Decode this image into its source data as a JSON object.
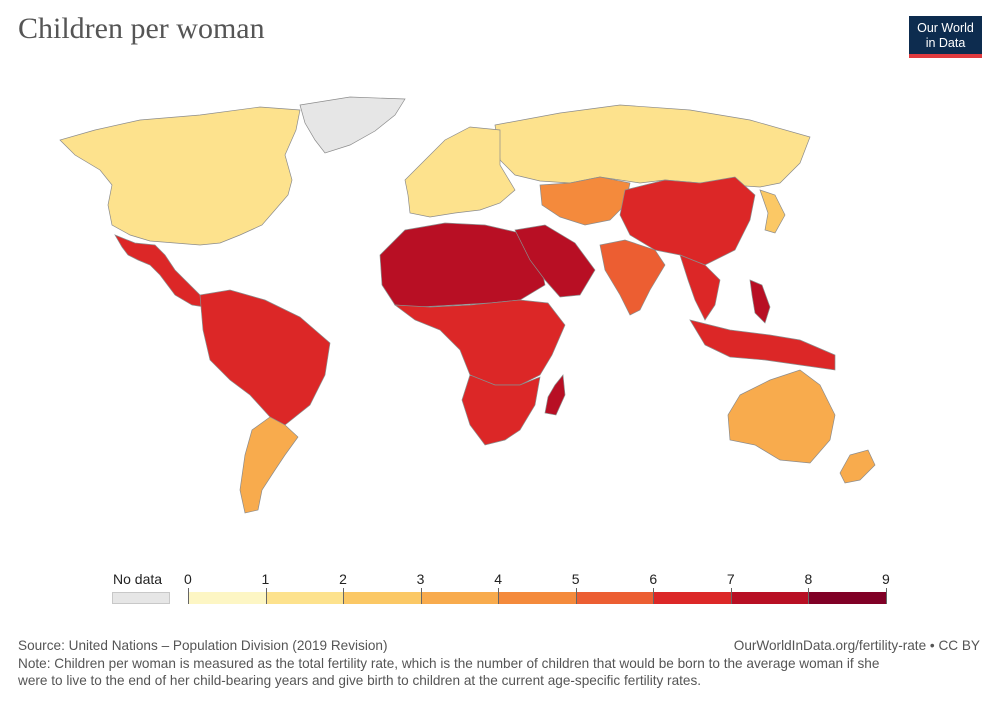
{
  "header": {
    "title": "Children per woman",
    "logo": {
      "line1": "Our World",
      "line2": "in Data"
    }
  },
  "colors": {
    "scale": [
      "#fdf6c4",
      "#fde28d",
      "#fbc865",
      "#f8ab4d",
      "#f48a3c",
      "#ec5e32",
      "#dc2727",
      "#b80f24",
      "#800026"
    ],
    "no_data": "#e6e6e6",
    "border": "#8c8c8c"
  },
  "legend": {
    "no_data_label": "No data",
    "ticks": [
      "0",
      "1",
      "2",
      "3",
      "4",
      "5",
      "6",
      "7",
      "8",
      "9"
    ]
  },
  "regions": [
    {
      "name": "Greenland",
      "class": "no_data"
    },
    {
      "name": "North America",
      "class": 1
    },
    {
      "name": "Russia",
      "class": 1
    },
    {
      "name": "Europe",
      "class": 1
    },
    {
      "name": "Mexico and Central America",
      "class": 6
    },
    {
      "name": "South America North",
      "class": 6
    },
    {
      "name": "Southern Cone",
      "class": 3
    },
    {
      "name": "North Africa",
      "class": 7
    },
    {
      "name": "Arabian Peninsula",
      "class": 7
    },
    {
      "name": "Central Africa",
      "class": 6
    },
    {
      "name": "Southern Africa",
      "class": 6
    },
    {
      "name": "Madagascar",
      "class": 7
    },
    {
      "name": "Central Asia",
      "class": 4
    },
    {
      "name": "China",
      "class": 6
    },
    {
      "name": "India",
      "class": 5
    },
    {
      "name": "Southeast Asia",
      "class": 6
    },
    {
      "name": "Japan",
      "class": 2
    },
    {
      "name": "Indonesia",
      "class": 6
    },
    {
      "name": "Philippines",
      "class": 7
    },
    {
      "name": "Australia",
      "class": 3
    },
    {
      "name": "New Zealand",
      "class": 3
    }
  ],
  "footer": {
    "source": "Source: United Nations – Population Division (2019 Revision)",
    "url": "OurWorldInData.org/fertility-rate • CC BY",
    "note_line1": "Note: Children per woman is measured as the total fertility rate, which is the number of children that would be born to the average woman if she",
    "note_line2": "were to live to the end of her child-bearing years and give birth to children at the current age-specific fertility rates."
  }
}
